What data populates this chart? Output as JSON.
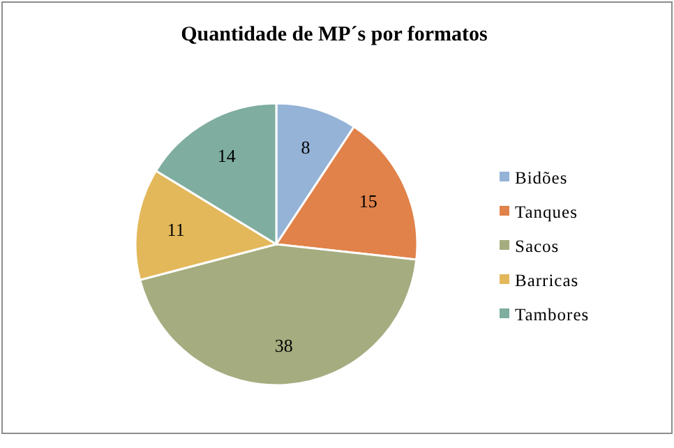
{
  "chart_data": {
    "type": "pie",
    "title": "Quantidade de MP´s por formatos",
    "categories": [
      "Bidões",
      "Tanques",
      "Sacos",
      "Barricas",
      "Tambores"
    ],
    "values": [
      8,
      15,
      38,
      11,
      14
    ],
    "colors": [
      "#95b3d7",
      "#e0824a",
      "#a5ad80",
      "#e3b85b",
      "#7fada0"
    ],
    "data_labels": true,
    "legend": "right"
  }
}
